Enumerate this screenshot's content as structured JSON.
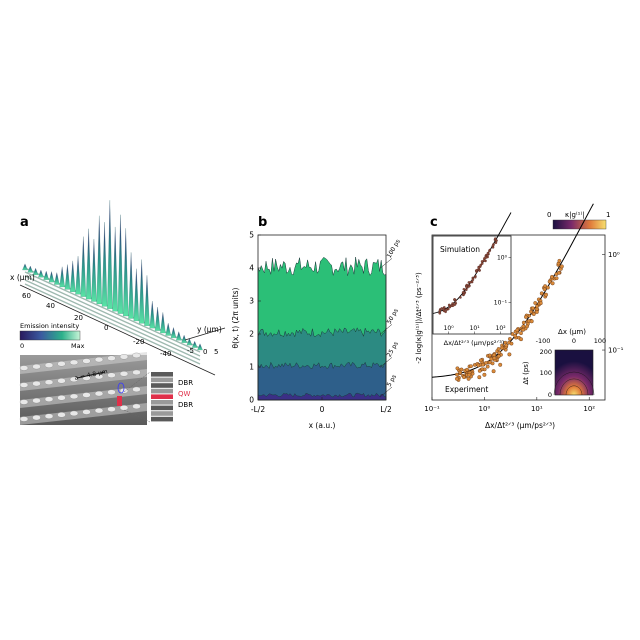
{
  "panel_a": {
    "label": "a",
    "x_axis_label": "x (μm)",
    "y_axis_label": "y (μm)",
    "x_ticks": [
      "60",
      "40",
      "20",
      "0",
      "-20",
      "-40"
    ],
    "y_ticks": [
      "-5",
      "0",
      "5"
    ],
    "colorbar_title": "Emission intensity",
    "colorbar_min": "0",
    "colorbar_max": "Max",
    "sem_scale_label": "a = 4.8 μm",
    "layer_labels": [
      "DBR",
      "QW",
      "DBR"
    ],
    "colors": {
      "low": "#3b1f7a",
      "mid": "#2a8f8a",
      "high": "#5ae3a5",
      "qw": "#e0304a"
    }
  },
  "panel_b": {
    "label": "b",
    "y_axis_label": "θ(x, t)  (2π units)",
    "x_axis_label": "x (a.u.)",
    "colors": [
      "#2bbf77",
      "#2c8a82",
      "#2e5f8a",
      "#3b2f86"
    ]
  },
  "panel_c": {
    "label": "c",
    "main_y_axis_label": "-2 log(κ|g⁽¹⁾|)/Δt²ᐟ³ (ps⁻²ᐟ³)",
    "main_x_axis_label": "Δx/Δt²ᐟ³ (μm/ps²ᐟ³)",
    "experiment_label": "Experiment",
    "inset_top_title": "Simulation",
    "inset_top_x_label": "Δx/Δt²ᐟ³ (μm/ps²ᐟ³)",
    "inset_heat_x_label": "Δx (μm)",
    "inset_heat_y_label": "Δt (ps)",
    "colorbar_title": "κ|g⁽¹⁾|",
    "colorbar_min": "0",
    "colorbar_max": "1",
    "colors": {
      "points": "#d98a3a",
      "fit": "#000000"
    }
  },
  "chart_data": [
    {
      "type": "area",
      "panel": "b",
      "xlabel": "x (a.u.)",
      "ylabel": "θ(x, t)  (2π units)",
      "x_ticks": [
        "-L/2",
        "0",
        "L/2"
      ],
      "y_ticks": [
        "0",
        "1",
        "2",
        "3",
        "4",
        "5"
      ],
      "ylim": [
        0,
        5
      ],
      "series": [
        {
          "name": "100 ps",
          "mean": 4.05
        },
        {
          "name": "50 ps",
          "mean": 2.05
        },
        {
          "name": "25 ps",
          "mean": 1.05
        },
        {
          "name": "5 ps",
          "mean": 0.15
        }
      ],
      "grid": false
    },
    {
      "type": "scatter",
      "panel": "c",
      "xlabel": "Δx/Δt²ᐟ³ (μm/ps²ᐟ³)",
      "ylabel": "-2 log(κ|g⁽¹⁾|)/Δt²ᐟ³ (ps⁻²ᐟ³)",
      "x_scale": "log",
      "y_scale": "log",
      "x_ticks": [
        "10⁻¹",
        "10⁰",
        "10¹",
        "10²"
      ],
      "y_ticks": [
        "10⁻¹",
        "10⁰"
      ],
      "xlim": [
        0.1,
        200
      ],
      "series": [
        {
          "name": "Experiment",
          "x": [
            0.3,
            0.5,
            0.8,
            1.0,
            1.5,
            2.0,
            3.0,
            5.0,
            8.0,
            10.0,
            15.0,
            20.0,
            30.0
          ],
          "y": [
            0.05,
            0.05,
            0.052,
            0.055,
            0.06,
            0.07,
            0.09,
            0.13,
            0.2,
            0.25,
            0.38,
            0.5,
            0.75
          ]
        }
      ]
    },
    {
      "type": "scatter",
      "panel": "c-inset-simulation",
      "xlabel": "Δx/Δt²ᐟ³ (μm/ps²ᐟ³)",
      "x_scale": "log",
      "y_scale": "log",
      "x_ticks": [
        "10⁰",
        "10¹",
        "10²"
      ],
      "y_ticks": [
        "10⁻¹",
        "10⁰"
      ]
    },
    {
      "type": "heatmap",
      "panel": "c-inset-heatmap",
      "xlabel": "Δx (μm)",
      "ylabel": "Δt (ps)",
      "x_ticks": [
        "-100",
        "0",
        "100"
      ],
      "y_ticks": [
        "0",
        "100",
        "200"
      ]
    }
  ]
}
